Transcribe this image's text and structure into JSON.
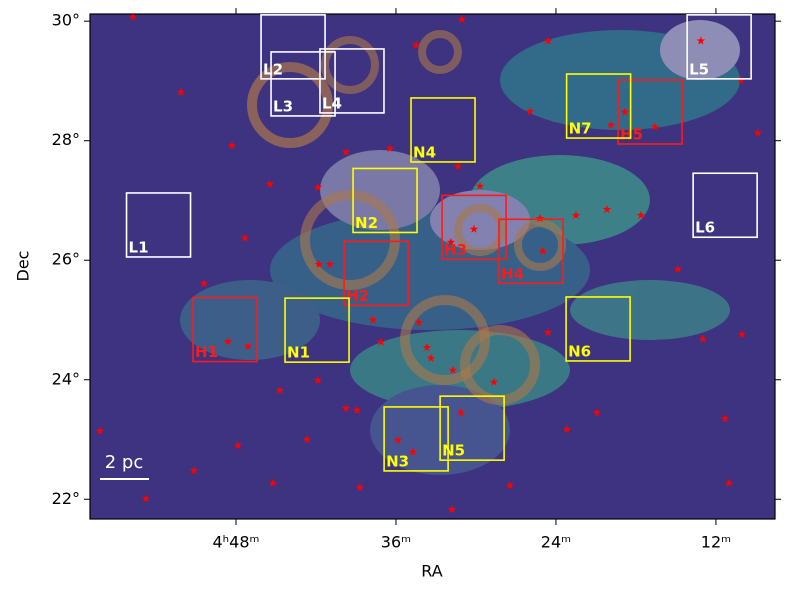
{
  "chart_data": {
    "type": "sky-map",
    "x_label": "RA",
    "y_label": "Dec",
    "xlim": [
      58.95,
      7.57
    ],
    "ylim": [
      21.67,
      30.12
    ],
    "xticks": [
      {
        "value": 48,
        "label": "4ʰ48ᵐ"
      },
      {
        "value": 36,
        "label": "36ᵐ"
      },
      {
        "value": 24,
        "label": "24ᵐ"
      },
      {
        "value": 12,
        "label": "12ᵐ"
      }
    ],
    "yticks": [
      {
        "value": 22,
        "label": "22°"
      },
      {
        "value": 24,
        "label": "24°"
      },
      {
        "value": 26,
        "label": "26°"
      },
      {
        "value": 28,
        "label": "28°"
      },
      {
        "value": 30,
        "label": "30°"
      }
    ],
    "scale_bar": "2 pc",
    "regions": [
      {
        "name": "L2",
        "color": "#ffffff",
        "ra": 43.72,
        "dec": 29.57
      },
      {
        "name": "L3",
        "color": "#ffffff",
        "ra": 42.97,
        "dec": 28.95
      },
      {
        "name": "L4",
        "color": "#ffffff",
        "ra": 39.3,
        "dec": 29.0
      },
      {
        "name": "L1",
        "color": "#ffffff",
        "ra": 53.81,
        "dec": 26.59
      },
      {
        "name": "L5",
        "color": "#ffffff",
        "ra": 11.76,
        "dec": 29.57
      },
      {
        "name": "L6",
        "color": "#ffffff",
        "ra": 11.31,
        "dec": 26.92
      },
      {
        "name": "H5",
        "color": "#ff1a1a",
        "ra": 16.94,
        "dec": 28.48
      },
      {
        "name": "N7",
        "color": "#ffff00",
        "ra": 20.8,
        "dec": 28.58
      },
      {
        "name": "N4",
        "color": "#ffff00",
        "ra": 32.47,
        "dec": 28.18
      },
      {
        "name": "N2",
        "color": "#ffff00",
        "ra": 36.82,
        "dec": 27.0
      },
      {
        "name": "H3",
        "color": "#ff1a1a",
        "ra": 30.14,
        "dec": 26.55
      },
      {
        "name": "H4",
        "color": "#ff1a1a",
        "ra": 25.87,
        "dec": 26.15
      },
      {
        "name": "H2",
        "color": "#ff1a1a",
        "ra": 37.49,
        "dec": 25.78
      },
      {
        "name": "H1",
        "color": "#ff1a1a",
        "ra": 48.82,
        "dec": 24.84
      },
      {
        "name": "N1",
        "color": "#ffff00",
        "ra": 41.92,
        "dec": 24.83
      },
      {
        "name": "N6",
        "color": "#ffff00",
        "ra": 20.84,
        "dec": 24.85
      },
      {
        "name": "N3",
        "color": "#ffff00",
        "ra": 34.49,
        "dec": 23.01
      },
      {
        "name": "N5",
        "color": "#ffff00",
        "ra": 30.29,
        "dec": 23.19
      }
    ],
    "stars": {
      "color": "#ff0000",
      "ra": [
        55.73,
        31.05,
        24.6,
        34.5,
        52.12,
        48.3,
        45.45,
        41.85,
        47.33,
        50.4,
        44.7,
        47.85,
        51.15,
        54.75,
        58.2,
        45.23,
        38.7,
        31.8,
        27.45,
        23.18,
        20.93,
        11.33,
        11.03,
        10.05,
        12.98,
        14.85,
        17.63,
        20.18,
        22.5,
        25.2,
        25.95,
        31.35,
        29.7,
        13.13,
        10.13,
        8.85,
        16.58,
        19.88,
        18.83,
        36.45,
        39.75,
        40.95,
        37.73,
        37.13,
        33.68,
        33.38,
        31.73,
        28.65,
        24.6,
        39.75,
        38.93,
        35.85,
        34.73,
        31.13,
        34.28,
        31.88,
        30.15,
        24.98,
        41.78,
        47.1,
        48.6,
        42.68,
        41.85
      ],
      "dec": [
        30.07,
        30.03,
        29.67,
        29.6,
        28.81,
        27.92,
        27.27,
        27.22,
        26.37,
        25.61,
        23.82,
        22.9,
        22.48,
        22.01,
        23.14,
        22.27,
        22.2,
        21.83,
        22.23,
        23.17,
        23.45,
        23.35,
        22.27,
        24.76,
        24.68,
        25.85,
        26.75,
        26.85,
        26.75,
        26.7,
        28.49,
        27.57,
        27.24,
        29.67,
        29.01,
        28.13,
        28.23,
        28.26,
        28.48,
        27.87,
        27.81,
        25.93,
        25.0,
        24.63,
        24.54,
        24.36,
        24.16,
        23.96,
        24.79,
        23.52,
        23.49,
        22.99,
        22.79,
        23.45,
        24.96,
        26.3,
        26.52,
        26.15,
        25.93,
        24.56,
        24.64,
        23.0,
        23.99
      ]
    }
  }
}
